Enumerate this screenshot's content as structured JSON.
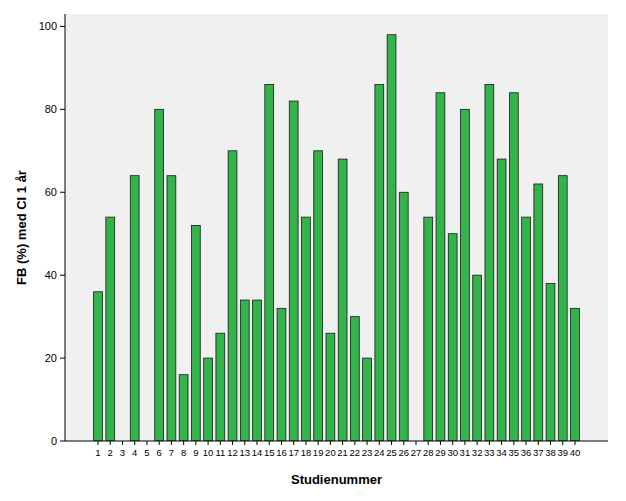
{
  "chart_data": {
    "type": "bar",
    "x_label": "Studienummer",
    "y_label": "FB (%) med CI 1 år",
    "categories": [
      "1",
      "2",
      "3",
      "4",
      "5",
      "6",
      "7",
      "8",
      "9",
      "10",
      "11",
      "12",
      "13",
      "14",
      "15",
      "16",
      "17",
      "18",
      "19",
      "20",
      "21",
      "22",
      "23",
      "24",
      "25",
      "26",
      "27",
      "28",
      "29",
      "30",
      "31",
      "32",
      "33",
      "34",
      "35",
      "36",
      "37",
      "38",
      "39",
      "40"
    ],
    "values": [
      36,
      54,
      null,
      64,
      null,
      80,
      64,
      16,
      52,
      20,
      26,
      70,
      34,
      34,
      86,
      32,
      82,
      54,
      70,
      26,
      68,
      30,
      20,
      86,
      98,
      60,
      null,
      54,
      84,
      50,
      80,
      40,
      86,
      68,
      84,
      54,
      62,
      38,
      64,
      32
    ],
    "color": "#33b44a",
    "ylim": [
      0,
      103
    ],
    "yticks": [
      0,
      20,
      40,
      60,
      80,
      100
    ],
    "grid": false
  }
}
